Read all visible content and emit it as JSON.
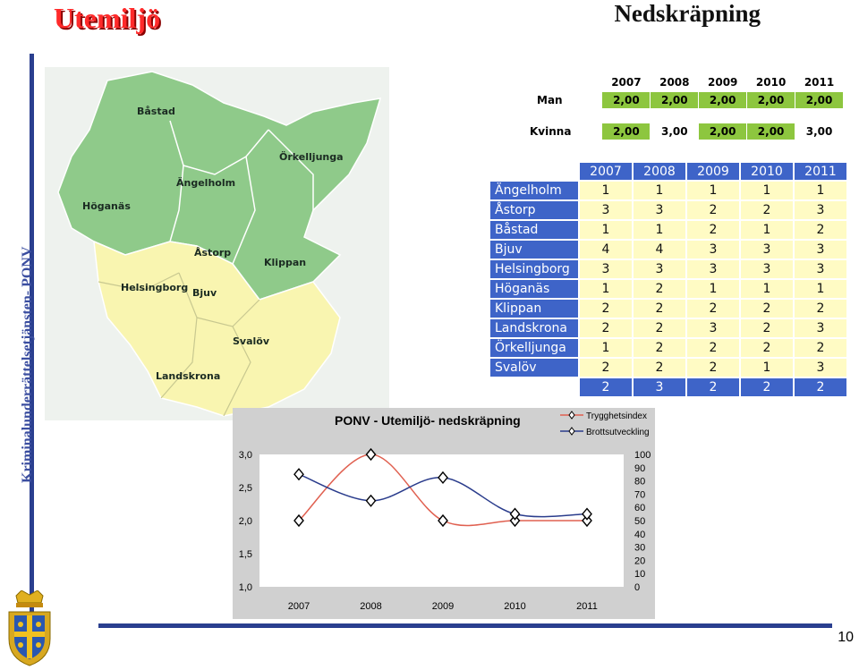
{
  "header": {
    "title": "Utemiljö",
    "slide_title": "Nedskräpning"
  },
  "sidebar": {
    "vertical_text": "Kriminalunderrättelsetjänsten- PONV"
  },
  "footer": {
    "page_number": "10"
  },
  "map": {
    "labels": [
      "Båstad",
      "Ängelholm",
      "Örkelljunga",
      "Höganäs",
      "Åstorp",
      "Klippan",
      "Helsingborg",
      "Bjuv",
      "Svalöv",
      "Landskrona"
    ]
  },
  "table_gender": {
    "years": [
      "2007",
      "2008",
      "2009",
      "2010",
      "2011"
    ],
    "rows": [
      {
        "label": "Man",
        "values": [
          "2,00",
          "2,00",
          "2,00",
          "2,00",
          "2,00"
        ]
      },
      {
        "label": "Kvinna",
        "values": [
          "2,00",
          "3,00",
          "2,00",
          "2,00",
          "3,00"
        ]
      }
    ]
  },
  "table_municipalities": {
    "years": [
      "2007",
      "2008",
      "2009",
      "2010",
      "2011"
    ],
    "rows": [
      {
        "name": "Ängelholm",
        "values": [
          "1",
          "1",
          "1",
          "1",
          "1"
        ]
      },
      {
        "name": "Åstorp",
        "values": [
          "3",
          "3",
          "2",
          "2",
          "3"
        ]
      },
      {
        "name": "Båstad",
        "values": [
          "1",
          "1",
          "2",
          "1",
          "2"
        ]
      },
      {
        "name": "Bjuv",
        "values": [
          "4",
          "4",
          "3",
          "3",
          "3"
        ]
      },
      {
        "name": "Helsingborg",
        "values": [
          "3",
          "3",
          "3",
          "3",
          "3"
        ]
      },
      {
        "name": "Höganäs",
        "values": [
          "1",
          "2",
          "1",
          "1",
          "1"
        ]
      },
      {
        "name": "Klippan",
        "values": [
          "2",
          "2",
          "2",
          "2",
          "2"
        ]
      },
      {
        "name": "Landskrona",
        "values": [
          "2",
          "2",
          "3",
          "2",
          "3"
        ]
      },
      {
        "name": "Örkelljunga",
        "values": [
          "1",
          "2",
          "2",
          "2",
          "2"
        ]
      },
      {
        "name": "Svalöv",
        "values": [
          "2",
          "2",
          "2",
          "1",
          "3"
        ]
      },
      {
        "name": "",
        "values": [
          "2",
          "3",
          "2",
          "2",
          "2"
        ]
      }
    ]
  },
  "chart_data": {
    "type": "line",
    "title": "PONV - Utemiljö- nedskräpning",
    "categories": [
      "2007",
      "2008",
      "2009",
      "2010",
      "2011"
    ],
    "y_ticks": [
      "3,0",
      "2,5",
      "2,0",
      "1,5",
      "1,0"
    ],
    "y2_ticks": [
      "100",
      "90",
      "80",
      "70",
      "60",
      "50",
      "40",
      "30",
      "20",
      "10",
      "0"
    ],
    "ylim": [
      1.0,
      3.0
    ],
    "y2lim": [
      0,
      100
    ],
    "legend_position": "top-right",
    "series": [
      {
        "name": "Trygghetsindex",
        "values": [
          2.0,
          3.0,
          2.0,
          2.0,
          2.0
        ],
        "color": "#e06050"
      },
      {
        "name": "Brottsutveckling",
        "values": [
          2.7,
          2.3,
          2.65,
          2.1,
          2.1
        ],
        "color": "#2a3c8c"
      }
    ]
  }
}
